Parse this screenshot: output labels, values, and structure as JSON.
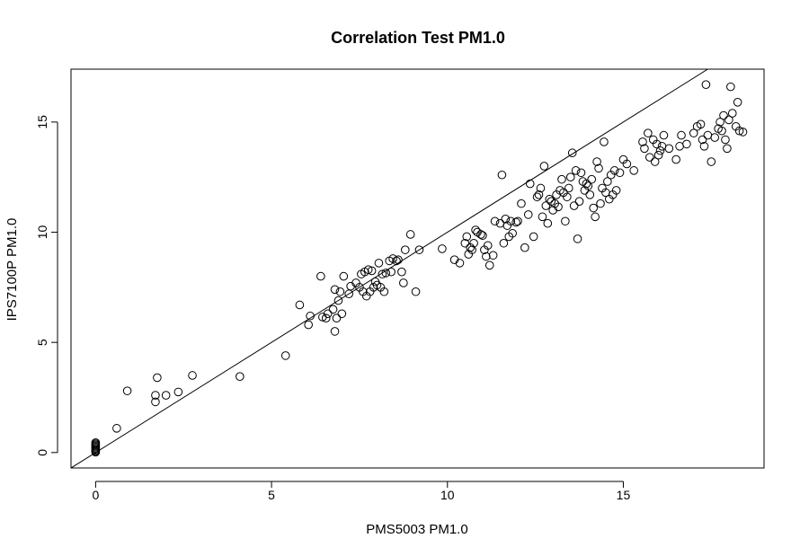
{
  "chart_data": {
    "type": "scatter",
    "title": "Correlation Test PM1.0",
    "xlabel": "PMS5003 PM1.0",
    "ylabel": "IPS7100P PM1.0",
    "xlim": [
      -0.7,
      19.0
    ],
    "ylim": [
      -0.7,
      17.4
    ],
    "x_ticks": [
      0,
      5,
      10,
      15
    ],
    "y_ticks": [
      0,
      5,
      10,
      15
    ],
    "grid": false,
    "reference_line": {
      "type": "identity",
      "slope": 1,
      "intercept": 0
    },
    "series": [
      {
        "points": [
          [
            0,
            0.02
          ],
          [
            0,
            0.05
          ],
          [
            0,
            0.1
          ],
          [
            0,
            0.15
          ],
          [
            0,
            0.2
          ],
          [
            0,
            0.25
          ],
          [
            0,
            0.3
          ],
          [
            0,
            0.35
          ],
          [
            0,
            0.4
          ],
          [
            0,
            0.45
          ],
          [
            0.6,
            1.1
          ],
          [
            0.9,
            2.8
          ],
          [
            1.7,
            2.3
          ],
          [
            1.7,
            2.6
          ],
          [
            1.75,
            3.4
          ],
          [
            2.0,
            2.6
          ],
          [
            2.35,
            2.75
          ],
          [
            2.75,
            3.5
          ],
          [
            4.1,
            3.45
          ],
          [
            5.4,
            4.4
          ],
          [
            5.8,
            6.7
          ],
          [
            6.05,
            5.8
          ],
          [
            6.1,
            6.2
          ],
          [
            6.4,
            8.0
          ],
          [
            6.45,
            6.15
          ],
          [
            6.55,
            6.1
          ],
          [
            6.6,
            6.3
          ],
          [
            6.75,
            6.5
          ],
          [
            6.8,
            7.4
          ],
          [
            6.8,
            5.5
          ],
          [
            6.85,
            6.1
          ],
          [
            6.9,
            6.9
          ],
          [
            6.95,
            7.3
          ],
          [
            7.0,
            6.3
          ],
          [
            7.05,
            8.0
          ],
          [
            7.2,
            7.2
          ],
          [
            7.25,
            7.55
          ],
          [
            7.4,
            7.7
          ],
          [
            7.5,
            7.5
          ],
          [
            7.55,
            8.1
          ],
          [
            7.6,
            7.3
          ],
          [
            7.65,
            8.2
          ],
          [
            7.7,
            7.1
          ],
          [
            7.75,
            8.3
          ],
          [
            7.8,
            7.3
          ],
          [
            7.85,
            8.25
          ],
          [
            7.9,
            7.5
          ],
          [
            7.95,
            7.75
          ],
          [
            8.0,
            7.6
          ],
          [
            8.05,
            8.6
          ],
          [
            8.1,
            7.5
          ],
          [
            8.15,
            8.1
          ],
          [
            8.2,
            7.3
          ],
          [
            8.25,
            8.15
          ],
          [
            8.35,
            8.7
          ],
          [
            8.4,
            8.2
          ],
          [
            8.45,
            8.8
          ],
          [
            8.55,
            8.7
          ],
          [
            8.6,
            8.75
          ],
          [
            8.7,
            8.2
          ],
          [
            8.75,
            7.7
          ],
          [
            8.8,
            9.2
          ],
          [
            8.95,
            9.9
          ],
          [
            9.1,
            7.3
          ],
          [
            9.2,
            9.2
          ],
          [
            9.85,
            9.25
          ],
          [
            10.2,
            8.75
          ],
          [
            10.35,
            8.6
          ],
          [
            10.5,
            9.5
          ],
          [
            10.55,
            9.8
          ],
          [
            10.6,
            9.0
          ],
          [
            10.65,
            9.3
          ],
          [
            10.7,
            9.2
          ],
          [
            10.75,
            9.5
          ],
          [
            10.8,
            10.1
          ],
          [
            10.85,
            10.0
          ],
          [
            10.95,
            9.9
          ],
          [
            11.0,
            9.85
          ],
          [
            11.05,
            9.2
          ],
          [
            11.1,
            8.9
          ],
          [
            11.15,
            9.4
          ],
          [
            11.2,
            8.5
          ],
          [
            11.3,
            8.95
          ],
          [
            11.35,
            10.5
          ],
          [
            11.5,
            10.4
          ],
          [
            11.55,
            12.6
          ],
          [
            11.6,
            9.5
          ],
          [
            11.65,
            10.6
          ],
          [
            11.7,
            10.3
          ],
          [
            11.75,
            9.8
          ],
          [
            11.8,
            10.5
          ],
          [
            11.85,
            9.95
          ],
          [
            11.95,
            10.45
          ],
          [
            12.0,
            10.5
          ],
          [
            12.1,
            11.3
          ],
          [
            12.2,
            9.3
          ],
          [
            12.3,
            10.8
          ],
          [
            12.35,
            12.2
          ],
          [
            12.45,
            9.8
          ],
          [
            12.55,
            11.6
          ],
          [
            12.6,
            11.7
          ],
          [
            12.65,
            12.0
          ],
          [
            12.7,
            10.7
          ],
          [
            12.75,
            13.0
          ],
          [
            12.8,
            11.2
          ],
          [
            12.85,
            10.4
          ],
          [
            12.9,
            11.5
          ],
          [
            12.95,
            11.4
          ],
          [
            13.0,
            11.0
          ],
          [
            13.05,
            11.3
          ],
          [
            13.1,
            11.7
          ],
          [
            13.15,
            11.15
          ],
          [
            13.2,
            11.9
          ],
          [
            13.25,
            12.4
          ],
          [
            13.3,
            11.8
          ],
          [
            13.35,
            10.5
          ],
          [
            13.4,
            11.6
          ],
          [
            13.45,
            12.0
          ],
          [
            13.5,
            12.5
          ],
          [
            13.55,
            13.6
          ],
          [
            13.6,
            11.2
          ],
          [
            13.65,
            12.8
          ],
          [
            13.7,
            9.7
          ],
          [
            13.75,
            11.4
          ],
          [
            13.8,
            12.7
          ],
          [
            13.85,
            12.3
          ],
          [
            13.9,
            11.9
          ],
          [
            13.95,
            12.2
          ],
          [
            14.0,
            12.1
          ],
          [
            14.05,
            11.7
          ],
          [
            14.1,
            12.4
          ],
          [
            14.15,
            11.1
          ],
          [
            14.2,
            10.7
          ],
          [
            14.25,
            13.2
          ],
          [
            14.3,
            12.9
          ],
          [
            14.35,
            11.3
          ],
          [
            14.4,
            12.0
          ],
          [
            14.45,
            14.1
          ],
          [
            14.5,
            11.8
          ],
          [
            14.55,
            12.3
          ],
          [
            14.6,
            11.5
          ],
          [
            14.65,
            12.6
          ],
          [
            14.7,
            11.7
          ],
          [
            14.75,
            12.8
          ],
          [
            14.8,
            11.9
          ],
          [
            14.9,
            12.7
          ],
          [
            15.0,
            13.3
          ],
          [
            15.1,
            13.1
          ],
          [
            15.3,
            12.8
          ],
          [
            15.55,
            14.1
          ],
          [
            15.6,
            13.8
          ],
          [
            15.7,
            14.5
          ],
          [
            15.75,
            13.4
          ],
          [
            15.85,
            14.2
          ],
          [
            15.9,
            13.2
          ],
          [
            15.95,
            14.0
          ],
          [
            16.0,
            13.5
          ],
          [
            16.05,
            13.7
          ],
          [
            16.1,
            13.9
          ],
          [
            16.15,
            14.4
          ],
          [
            16.3,
            13.8
          ],
          [
            16.5,
            13.3
          ],
          [
            16.6,
            13.9
          ],
          [
            16.65,
            14.4
          ],
          [
            16.8,
            14.0
          ],
          [
            17.0,
            14.5
          ],
          [
            17.1,
            14.8
          ],
          [
            17.2,
            14.9
          ],
          [
            17.25,
            14.2
          ],
          [
            17.3,
            13.9
          ],
          [
            17.35,
            16.7
          ],
          [
            17.4,
            14.4
          ],
          [
            17.5,
            13.2
          ],
          [
            17.6,
            14.3
          ],
          [
            17.7,
            14.7
          ],
          [
            17.75,
            15.0
          ],
          [
            17.8,
            14.6
          ],
          [
            17.85,
            15.3
          ],
          [
            17.9,
            14.2
          ],
          [
            17.95,
            13.8
          ],
          [
            18.0,
            15.1
          ],
          [
            18.05,
            16.6
          ],
          [
            18.1,
            15.4
          ],
          [
            18.2,
            14.8
          ],
          [
            18.25,
            15.9
          ],
          [
            18.3,
            14.6
          ],
          [
            18.4,
            14.55
          ]
        ]
      }
    ]
  }
}
